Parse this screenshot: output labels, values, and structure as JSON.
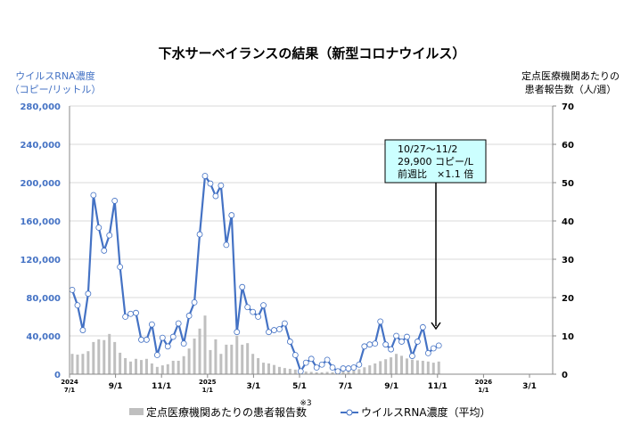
{
  "chart_data": {
    "type": "bar+line",
    "title": "下水サーベイランスの結果（新型コロナウイルス）",
    "ylabel_left": [
      "ウイルスRNA濃度",
      "（コピー/リットル）"
    ],
    "ylabel_right": [
      "定点医療機関あたりの",
      "患者報告数（人/週）"
    ],
    "ylim_left": [
      0,
      280000
    ],
    "ylim_right": [
      0,
      70
    ],
    "yticks_left": [
      "0",
      "40,000",
      "80,000",
      "120,000",
      "160,000",
      "200,000",
      "240,000",
      "280,000"
    ],
    "yticks_right": [
      "0",
      "10",
      "20",
      "30",
      "40",
      "50",
      "60",
      "70"
    ],
    "xticks": [
      {
        "top": "2024",
        "bottom": "7/1"
      },
      {
        "top": "",
        "bottom": "9/1"
      },
      {
        "top": "",
        "bottom": "11/1"
      },
      {
        "top": "2025",
        "bottom": "1/1"
      },
      {
        "top": "",
        "bottom": "3/1"
      },
      {
        "top": "",
        "bottom": "5/1"
      },
      {
        "top": "",
        "bottom": "7/1"
      },
      {
        "top": "",
        "bottom": "9/1"
      },
      {
        "top": "",
        "bottom": "11/1"
      },
      {
        "top": "2026",
        "bottom": "1/1"
      },
      {
        "top": "",
        "bottom": "3/1"
      }
    ],
    "x_note": "※3",
    "grid": true,
    "legend_position": "bottom",
    "series": [
      {
        "name": "定点医療機関あたりの患者報告数",
        "kind": "bar",
        "axis": "right",
        "color": "#bfbfbf",
        "values": [
          5.3,
          5.1,
          5.3,
          6,
          8.4,
          9.1,
          8.9,
          10.5,
          8.4,
          5.6,
          4.2,
          3.3,
          4,
          3.7,
          4,
          2.8,
          1.9,
          2.3,
          2.6,
          3.5,
          3.5,
          4.7,
          6.7,
          9.3,
          11.9,
          15.3,
          6.3,
          9.1,
          5.3,
          7.7,
          7.7,
          10,
          7.7,
          8.1,
          5.3,
          4.2,
          3.0,
          2.8,
          2.4,
          1.9,
          1.6,
          1.4,
          1.2,
          0.9,
          0.7,
          0.6,
          0.5,
          0.5,
          0.6,
          0.5,
          0.6,
          0.7,
          0.8,
          1.0,
          1.3,
          1.8,
          2.3,
          2.8,
          3.4,
          3.9,
          4.4,
          5.3,
          4.8,
          4.1,
          3.8,
          3.6,
          3.5,
          3.3,
          3.0,
          3.3
        ]
      },
      {
        "name": "ウイルスRNA濃度（平均）",
        "kind": "line",
        "axis": "left",
        "color": "#4472c4",
        "values": [
          88000,
          72000,
          46000,
          84000,
          187000,
          153000,
          129000,
          145000,
          181000,
          112000,
          60000,
          63000,
          64000,
          36000,
          36000,
          52000,
          20000,
          38000,
          29000,
          39000,
          53000,
          32000,
          61000,
          75000,
          146000,
          207000,
          199000,
          186000,
          197000,
          135000,
          166000,
          44000,
          91000,
          70000,
          65000,
          60000,
          72000,
          44000,
          46000,
          47000,
          53000,
          34000,
          20000,
          3000,
          12000,
          16000,
          7000,
          10000,
          15000,
          7000,
          3000,
          6000,
          6000,
          7000,
          10000,
          29000,
          31000,
          32000,
          55000,
          31000,
          26000,
          40000,
          34000,
          39000,
          19000,
          34000,
          49000,
          22000,
          27000,
          29900
        ]
      }
    ],
    "annotation": {
      "lines": [
        "10/27～11/2",
        "29,900 コピー/L",
        "前週比　×1.1 倍"
      ],
      "fill": "#ccffff"
    }
  }
}
